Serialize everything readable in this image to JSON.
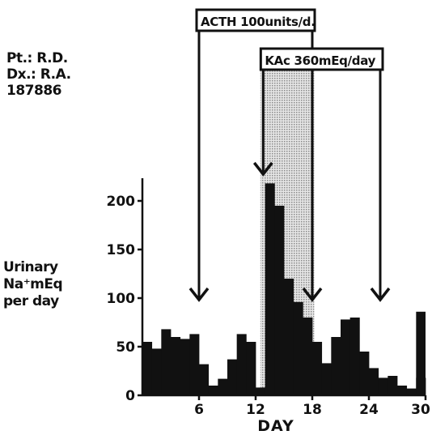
{
  "patient": {
    "line1": "Pt.: R.D.",
    "line2": "Dx.: R.A.",
    "line3": "187886"
  },
  "y_axis_label": {
    "line1": "Urinary",
    "line2": "Na⁺mEq",
    "line3": "per day"
  },
  "colors": {
    "bars": "#111111",
    "stipple": "#c8c8c8",
    "ink": "#111111"
  },
  "chart_data": {
    "type": "bar",
    "xlabel": "DAY",
    "ylabel": "Urinary Na⁺mEq per day",
    "xlim": [
      0,
      30
    ],
    "ylim": [
      0,
      220
    ],
    "xticks": [
      6,
      12,
      18,
      24,
      30
    ],
    "yticks": [
      0,
      50,
      100,
      150,
      200
    ],
    "grid": false,
    "days": [
      0,
      1,
      2,
      3,
      4,
      5,
      6,
      7,
      8,
      9,
      10,
      11,
      12,
      13,
      14,
      15,
      16,
      17,
      18,
      19,
      20,
      21,
      22,
      23,
      24,
      25,
      26,
      27,
      28,
      29
    ],
    "values": [
      55,
      48,
      68,
      60,
      58,
      63,
      32,
      10,
      17,
      37,
      63,
      55,
      8,
      218,
      195,
      120,
      96,
      80,
      55,
      33,
      60,
      78,
      80,
      45,
      28,
      18,
      20,
      10,
      7,
      18
    ],
    "extra_points": [
      {
        "x": 27,
        "y": 18
      },
      {
        "x": 28,
        "y": 10
      },
      {
        "x": 29,
        "y": 86
      }
    ],
    "treatments": [
      {
        "label": "ACTH 100units/d.",
        "start": 6,
        "end": 18,
        "stippled": false
      },
      {
        "label": "KAc 360mEq/day",
        "start": 12.8,
        "end": 25.2,
        "stippled": true,
        "stipple_range": [
          12.5,
          18.2
        ]
      }
    ]
  }
}
